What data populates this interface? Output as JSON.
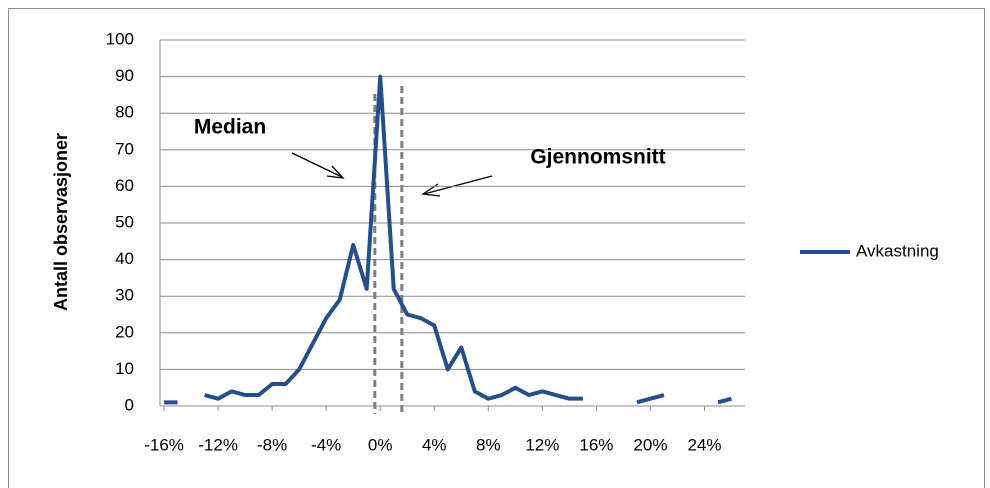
{
  "chart_data": {
    "type": "line",
    "y_label": "Antall observasjoner",
    "x": [
      -16,
      -15,
      -14,
      -13,
      -12,
      -11,
      -10,
      -9,
      -8,
      -7,
      -6,
      -5,
      -4,
      -3,
      -2,
      -1,
      0,
      1,
      2,
      3,
      4,
      5,
      6,
      7,
      8,
      9,
      10,
      11,
      12,
      13,
      14,
      15,
      16,
      17,
      18,
      19,
      20,
      21,
      22,
      23,
      24,
      25,
      26
    ],
    "series": [
      {
        "name": "Avkastning",
        "color": "#254f8a",
        "values": [
          1,
          1,
          null,
          3,
          2,
          4,
          3,
          3,
          6,
          6,
          10,
          17,
          24,
          29,
          44,
          32,
          90,
          32,
          25,
          24,
          22,
          10,
          16,
          4,
          2,
          3,
          5,
          3,
          4,
          3,
          2,
          2,
          null,
          null,
          null,
          1,
          2,
          3,
          null,
          null,
          null,
          1,
          2
        ]
      }
    ],
    "xlim": [
      -16.3,
      27
    ],
    "xticks": [
      {
        "value": -16,
        "label": "-16%"
      },
      {
        "value": -12,
        "label": "-12%"
      },
      {
        "value": -8,
        "label": "-8%"
      },
      {
        "value": -4,
        "label": "-4%"
      },
      {
        "value": 0,
        "label": "0%"
      },
      {
        "value": 4,
        "label": "4%"
      },
      {
        "value": 8,
        "label": "8%"
      },
      {
        "value": 12,
        "label": "12%"
      },
      {
        "value": 16,
        "label": "16%"
      },
      {
        "value": 20,
        "label": "20%"
      },
      {
        "value": 24,
        "label": "24%"
      }
    ],
    "ylim": [
      0,
      100
    ],
    "yticks": [
      0,
      10,
      20,
      30,
      40,
      50,
      60,
      70,
      80,
      90,
      100
    ],
    "grid": true,
    "legend": "right",
    "annotations": [
      {
        "text": "Median",
        "x": -0.4
      },
      {
        "text": "Gjennomsnitt",
        "x": 1.6
      }
    ]
  }
}
